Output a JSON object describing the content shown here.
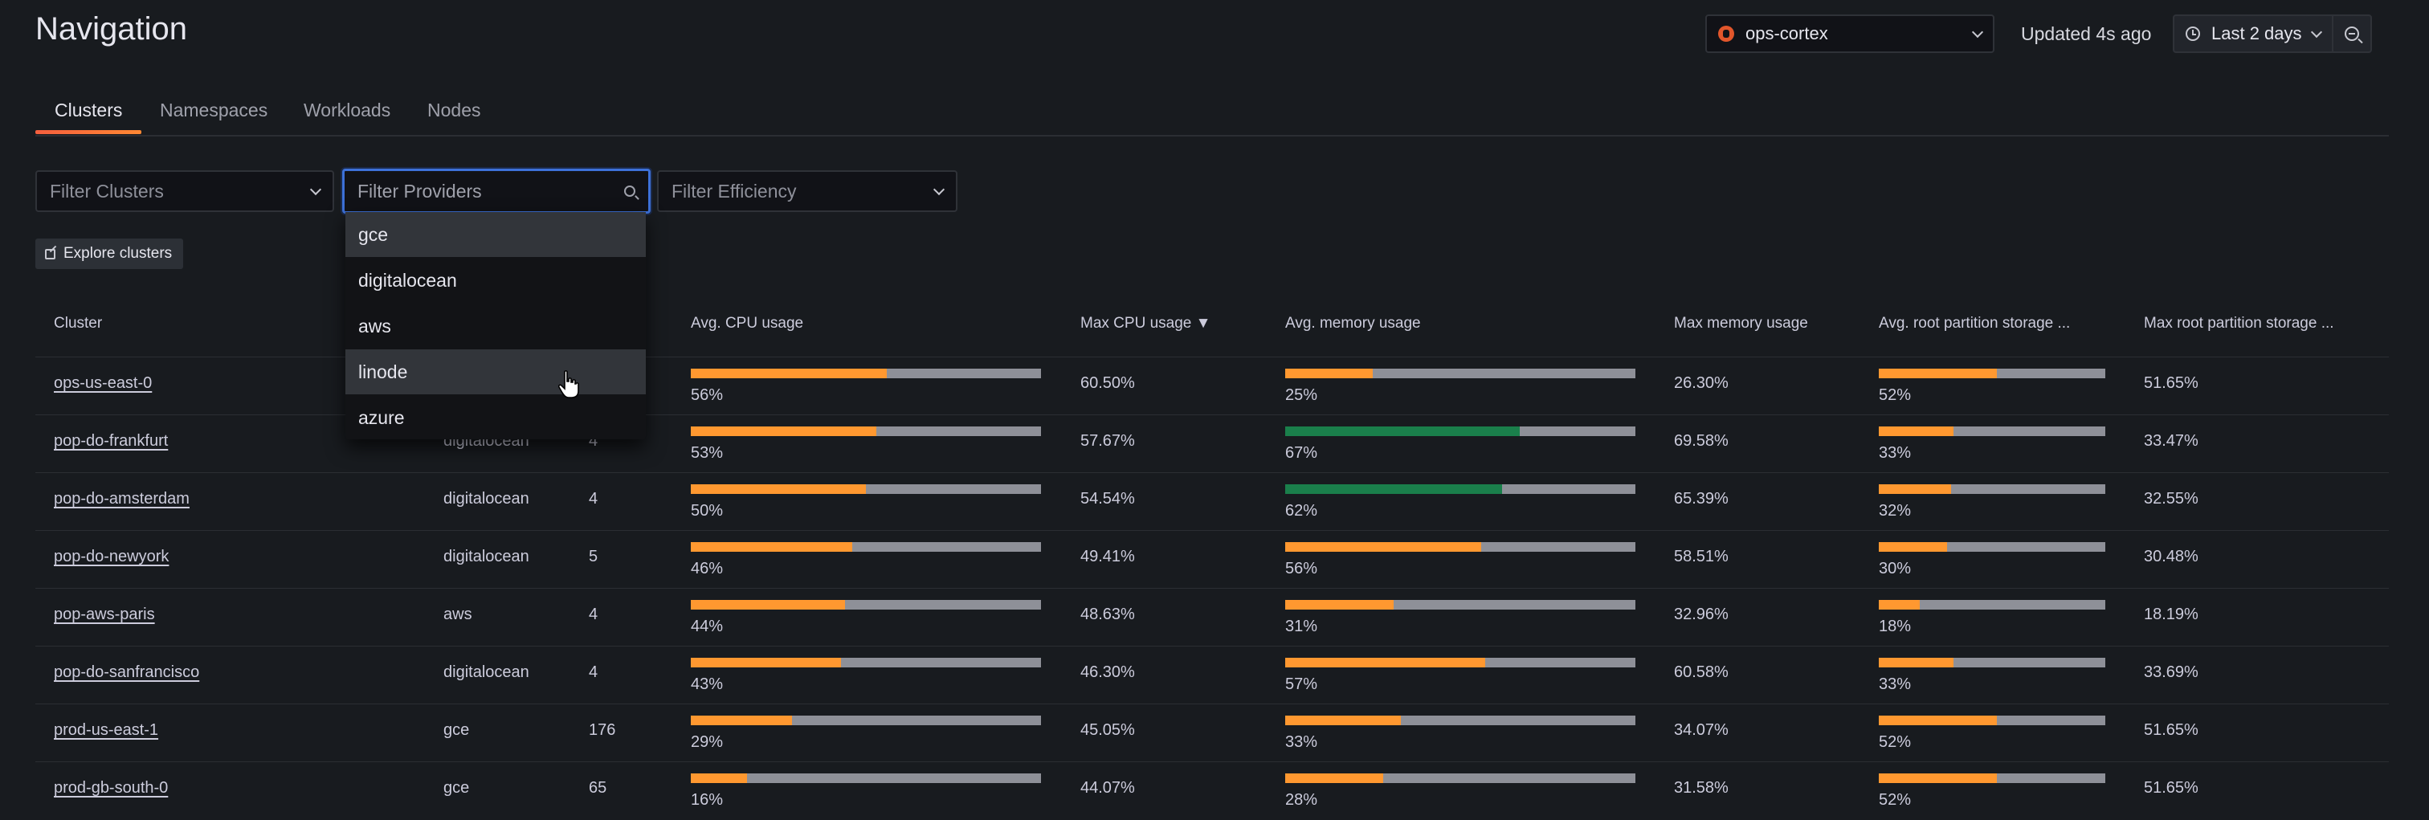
{
  "header": {
    "title": "Navigation",
    "datasource": "ops-cortex",
    "updated": "Updated 4s ago",
    "time_range": "Last 2 days"
  },
  "tabs": [
    "Clusters",
    "Namespaces",
    "Workloads",
    "Nodes"
  ],
  "filters": {
    "clusters": "Filter Clusters",
    "providers": "Filter Providers",
    "efficiency": "Filter Efficiency"
  },
  "explore_label": "Explore clusters",
  "provider_options": [
    "gce",
    "digitalocean",
    "aws",
    "linode",
    "azure"
  ],
  "table": {
    "columns": [
      "Cluster",
      "Avg. CPU usage",
      "Max CPU usage ▼",
      "Avg. memory usage",
      "Max memory usage",
      "Avg. root partition storage ...",
      "Max root partition storage ..."
    ],
    "rows": [
      {
        "cluster": "ops-us-east-0",
        "provider": "",
        "nodes": "",
        "avg_cpu": "56%",
        "avg_cpu_v": 0.56,
        "max_cpu": "60.50%",
        "avg_mem": "25%",
        "avg_mem_v": 0.25,
        "max_mem": "26.30%",
        "avg_root": "52%",
        "avg_root_v": 0.52,
        "max_root": "51.65%"
      },
      {
        "cluster": "pop-do-frankfurt",
        "provider": "digitalocean",
        "nodes": "4",
        "avg_cpu": "53%",
        "avg_cpu_v": 0.53,
        "max_cpu": "57.67%",
        "avg_mem": "67%",
        "avg_mem_v": 0.67,
        "max_mem": "69.58%",
        "avg_root": "33%",
        "avg_root_v": 0.33,
        "max_root": "33.47%"
      },
      {
        "cluster": "pop-do-amsterdam",
        "provider": "digitalocean",
        "nodes": "4",
        "avg_cpu": "50%",
        "avg_cpu_v": 0.5,
        "max_cpu": "54.54%",
        "avg_mem": "62%",
        "avg_mem_v": 0.62,
        "max_mem": "65.39%",
        "avg_root": "32%",
        "avg_root_v": 0.32,
        "max_root": "32.55%"
      },
      {
        "cluster": "pop-do-newyork",
        "provider": "digitalocean",
        "nodes": "5",
        "avg_cpu": "46%",
        "avg_cpu_v": 0.46,
        "max_cpu": "49.41%",
        "avg_mem": "56%",
        "avg_mem_v": 0.56,
        "max_mem": "58.51%",
        "avg_root": "30%",
        "avg_root_v": 0.3,
        "max_root": "30.48%"
      },
      {
        "cluster": "pop-aws-paris",
        "provider": "aws",
        "nodes": "4",
        "avg_cpu": "44%",
        "avg_cpu_v": 0.44,
        "max_cpu": "48.63%",
        "avg_mem": "31%",
        "avg_mem_v": 0.31,
        "max_mem": "32.96%",
        "avg_root": "18%",
        "avg_root_v": 0.18,
        "max_root": "18.19%"
      },
      {
        "cluster": "pop-do-sanfrancisco",
        "provider": "digitalocean",
        "nodes": "4",
        "avg_cpu": "43%",
        "avg_cpu_v": 0.43,
        "max_cpu": "46.30%",
        "avg_mem": "57%",
        "avg_mem_v": 0.57,
        "max_mem": "60.58%",
        "avg_root": "33%",
        "avg_root_v": 0.33,
        "max_root": "33.69%"
      },
      {
        "cluster": "prod-us-east-1",
        "provider": "gce",
        "nodes": "176",
        "avg_cpu": "29%",
        "avg_cpu_v": 0.29,
        "max_cpu": "45.05%",
        "avg_mem": "33%",
        "avg_mem_v": 0.33,
        "max_mem": "34.07%",
        "avg_root": "52%",
        "avg_root_v": 0.52,
        "max_root": "51.65%"
      },
      {
        "cluster": "prod-gb-south-0",
        "provider": "gce",
        "nodes": "65",
        "avg_cpu": "16%",
        "avg_cpu_v": 0.16,
        "max_cpu": "44.07%",
        "avg_mem": "28%",
        "avg_mem_v": 0.28,
        "max_mem": "31.58%",
        "avg_root": "52%",
        "avg_root_v": 0.52,
        "max_root": "51.65%"
      }
    ]
  },
  "colors": {
    "orange": "#ff9830",
    "green_bar": "#1a7f4b",
    "green_text": "#73bf69",
    "track": "#8e9098",
    "focus": "#3d71d9"
  }
}
